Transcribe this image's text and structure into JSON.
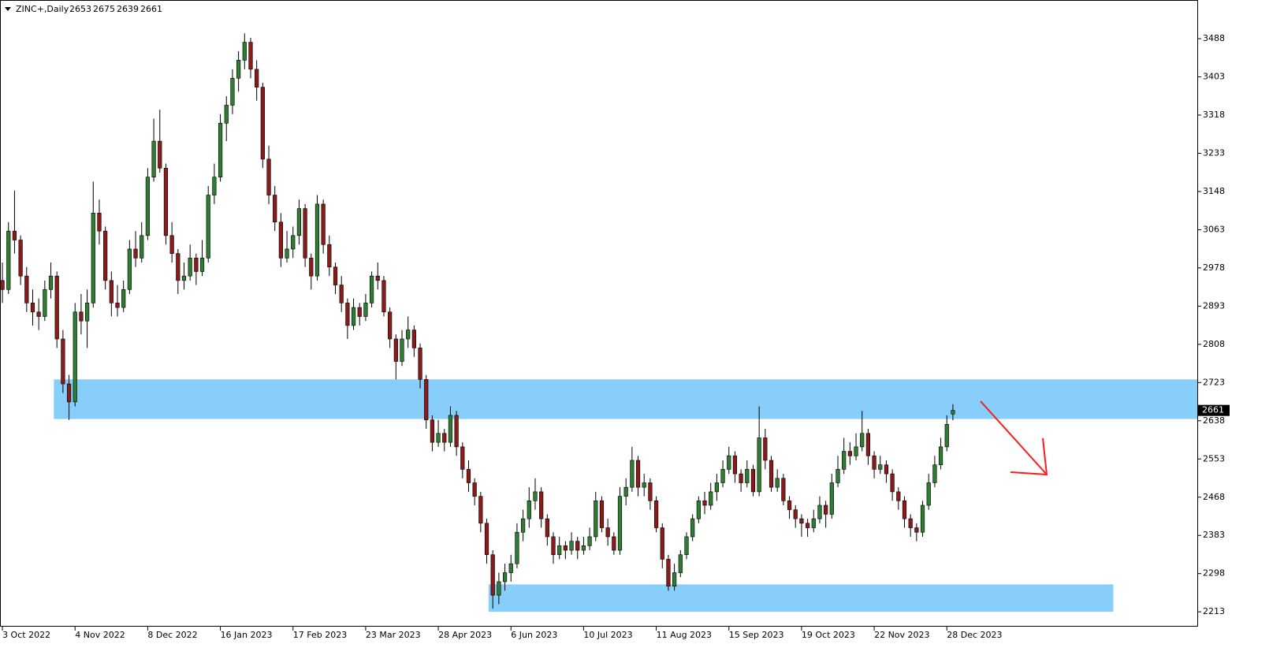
{
  "chart_data": {
    "type": "candlestick",
    "title": "ZINC+,Daily",
    "bull_color": "#2e7d32",
    "bear_color": "#8b1a1a",
    "zone_color": "#87cefa",
    "xlim": [
      -0.4,
      197.5
    ],
    "ylim": [
      2180,
      3574
    ],
    "yticks": [
      3488,
      3403,
      3318,
      3233,
      3148,
      3063,
      2978,
      2893,
      2808,
      2723,
      2638,
      2553,
      2468,
      2383,
      2298,
      2213
    ],
    "xticks": [
      {
        "value": 0,
        "label": "3 Oct 2022"
      },
      {
        "value": 12,
        "label": "4 Nov 2022"
      },
      {
        "value": 24,
        "label": "8 Dec 2022"
      },
      {
        "value": 36,
        "label": "16 Jan 2023"
      },
      {
        "value": 48,
        "label": "17 Feb 2023"
      },
      {
        "value": 60,
        "label": "23 Mar 2023"
      },
      {
        "value": 72,
        "label": "28 Apr 2023"
      },
      {
        "value": 84,
        "label": "6 Jun 2023"
      },
      {
        "value": 96,
        "label": "10 Jul 2023"
      },
      {
        "value": 108,
        "label": "11 Aug 2023"
      },
      {
        "value": 120,
        "label": "15 Sep 2023"
      },
      {
        "value": 132,
        "label": "19 Oct 2023"
      },
      {
        "value": 144,
        "label": "22 Nov 2023"
      },
      {
        "value": 156,
        "label": "28 Dec 2023"
      }
    ],
    "zones": [
      {
        "xlim": [
          8.5,
          197.5
        ],
        "ylim": [
          2642,
          2730
        ]
      },
      {
        "xlim": [
          80.3,
          183.5
        ],
        "ylim": [
          2213,
          2274
        ]
      }
    ],
    "ohlc": [
      [
        2950,
        2990,
        2900,
        2930
      ],
      [
        2930,
        3080,
        2920,
        3060
      ],
      [
        3060,
        3150,
        3010,
        3040
      ],
      [
        3040,
        3050,
        2940,
        2960
      ],
      [
        2960,
        2980,
        2880,
        2900
      ],
      [
        2900,
        2930,
        2850,
        2880
      ],
      [
        2880,
        2910,
        2840,
        2870
      ],
      [
        2870,
        2950,
        2860,
        2930
      ],
      [
        2930,
        2990,
        2910,
        2960
      ],
      [
        2960,
        2970,
        2800,
        2820
      ],
      [
        2820,
        2840,
        2700,
        2720
      ],
      [
        2720,
        2740,
        2640,
        2680
      ],
      [
        2680,
        2900,
        2670,
        2880
      ],
      [
        2880,
        2920,
        2830,
        2860
      ],
      [
        2860,
        2930,
        2800,
        2900
      ],
      [
        2900,
        3170,
        2890,
        3100
      ],
      [
        3100,
        3130,
        3030,
        3060
      ],
      [
        3060,
        3070,
        2930,
        2950
      ],
      [
        2950,
        2970,
        2870,
        2900
      ],
      [
        2900,
        2940,
        2870,
        2890
      ],
      [
        2890,
        2950,
        2880,
        2930
      ],
      [
        2930,
        3040,
        2920,
        3020
      ],
      [
        3020,
        3060,
        2980,
        3000
      ],
      [
        3000,
        3080,
        2990,
        3050
      ],
      [
        3050,
        3200,
        3040,
        3180
      ],
      [
        3180,
        3310,
        3170,
        3260
      ],
      [
        3260,
        3330,
        3190,
        3200
      ],
      [
        3200,
        3210,
        3030,
        3050
      ],
      [
        3050,
        3080,
        2990,
        3010
      ],
      [
        3010,
        3020,
        2920,
        2950
      ],
      [
        2950,
        2990,
        2930,
        2960
      ],
      [
        2960,
        3030,
        2950,
        3000
      ],
      [
        3000,
        3010,
        2940,
        2970
      ],
      [
        2970,
        3040,
        2960,
        3000
      ],
      [
        3000,
        3160,
        2990,
        3140
      ],
      [
        3140,
        3210,
        3120,
        3180
      ],
      [
        3180,
        3320,
        3170,
        3300
      ],
      [
        3300,
        3360,
        3260,
        3340
      ],
      [
        3340,
        3420,
        3320,
        3400
      ],
      [
        3400,
        3460,
        3370,
        3440
      ],
      [
        3440,
        3500,
        3420,
        3480
      ],
      [
        3480,
        3490,
        3400,
        3420
      ],
      [
        3420,
        3440,
        3350,
        3380
      ],
      [
        3380,
        3390,
        3200,
        3220
      ],
      [
        3220,
        3250,
        3120,
        3140
      ],
      [
        3140,
        3160,
        3060,
        3080
      ],
      [
        3080,
        3100,
        2980,
        3000
      ],
      [
        3000,
        3060,
        2990,
        3020
      ],
      [
        3020,
        3070,
        3000,
        3050
      ],
      [
        3050,
        3130,
        3030,
        3110
      ],
      [
        3110,
        3120,
        2980,
        3000
      ],
      [
        3000,
        3010,
        2930,
        2960
      ],
      [
        2960,
        3140,
        2950,
        3120
      ],
      [
        3120,
        3130,
        3010,
        3030
      ],
      [
        3030,
        3050,
        2960,
        2980
      ],
      [
        2980,
        2990,
        2920,
        2940
      ],
      [
        2940,
        2960,
        2880,
        2900
      ],
      [
        2900,
        2910,
        2820,
        2850
      ],
      [
        2850,
        2910,
        2840,
        2890
      ],
      [
        2890,
        2900,
        2850,
        2870
      ],
      [
        2870,
        2920,
        2860,
        2900
      ],
      [
        2900,
        2970,
        2890,
        2960
      ],
      [
        2960,
        2990,
        2930,
        2950
      ],
      [
        2950,
        2960,
        2870,
        2880
      ],
      [
        2880,
        2890,
        2800,
        2820
      ],
      [
        2820,
        2830,
        2730,
        2770
      ],
      [
        2770,
        2840,
        2760,
        2820
      ],
      [
        2820,
        2870,
        2800,
        2840
      ],
      [
        2840,
        2850,
        2780,
        2800
      ],
      [
        2800,
        2810,
        2710,
        2730
      ],
      [
        2730,
        2740,
        2620,
        2640
      ],
      [
        2640,
        2650,
        2570,
        2590
      ],
      [
        2590,
        2640,
        2580,
        2610
      ],
      [
        2610,
        2620,
        2570,
        2590
      ],
      [
        2590,
        2670,
        2580,
        2650
      ],
      [
        2650,
        2660,
        2560,
        2580
      ],
      [
        2580,
        2590,
        2510,
        2530
      ],
      [
        2530,
        2550,
        2480,
        2500
      ],
      [
        2500,
        2510,
        2450,
        2470
      ],
      [
        2470,
        2480,
        2390,
        2410
      ],
      [
        2410,
        2420,
        2320,
        2340
      ],
      [
        2340,
        2350,
        2220,
        2250
      ],
      [
        2250,
        2300,
        2230,
        2280
      ],
      [
        2280,
        2320,
        2260,
        2300
      ],
      [
        2300,
        2340,
        2280,
        2320
      ],
      [
        2320,
        2410,
        2310,
        2390
      ],
      [
        2390,
        2440,
        2370,
        2420
      ],
      [
        2420,
        2490,
        2400,
        2460
      ],
      [
        2460,
        2510,
        2440,
        2480
      ],
      [
        2480,
        2490,
        2400,
        2420
      ],
      [
        2420,
        2430,
        2360,
        2380
      ],
      [
        2380,
        2390,
        2320,
        2340
      ],
      [
        2340,
        2380,
        2330,
        2360
      ],
      [
        2360,
        2370,
        2330,
        2350
      ],
      [
        2350,
        2390,
        2340,
        2370
      ],
      [
        2370,
        2380,
        2330,
        2350
      ],
      [
        2350,
        2380,
        2340,
        2360
      ],
      [
        2360,
        2400,
        2350,
        2380
      ],
      [
        2380,
        2480,
        2370,
        2460
      ],
      [
        2460,
        2470,
        2390,
        2400
      ],
      [
        2400,
        2420,
        2360,
        2380
      ],
      [
        2380,
        2390,
        2340,
        2350
      ],
      [
        2350,
        2490,
        2340,
        2470
      ],
      [
        2470,
        2510,
        2450,
        2490
      ],
      [
        2490,
        2580,
        2480,
        2550
      ],
      [
        2550,
        2560,
        2470,
        2490
      ],
      [
        2490,
        2520,
        2470,
        2500
      ],
      [
        2500,
        2510,
        2440,
        2460
      ],
      [
        2460,
        2470,
        2390,
        2400
      ],
      [
        2400,
        2410,
        2310,
        2330
      ],
      [
        2330,
        2340,
        2260,
        2270
      ],
      [
        2270,
        2320,
        2260,
        2300
      ],
      [
        2300,
        2350,
        2290,
        2340
      ],
      [
        2340,
        2390,
        2330,
        2380
      ],
      [
        2380,
        2430,
        2370,
        2420
      ],
      [
        2420,
        2470,
        2410,
        2460
      ],
      [
        2460,
        2480,
        2430,
        2450
      ],
      [
        2450,
        2500,
        2440,
        2480
      ],
      [
        2480,
        2520,
        2460,
        2500
      ],
      [
        2500,
        2550,
        2490,
        2530
      ],
      [
        2530,
        2580,
        2520,
        2560
      ],
      [
        2560,
        2570,
        2500,
        2520
      ],
      [
        2520,
        2530,
        2480,
        2500
      ],
      [
        2500,
        2550,
        2490,
        2530
      ],
      [
        2530,
        2540,
        2470,
        2480
      ],
      [
        2480,
        2670,
        2470,
        2600
      ],
      [
        2600,
        2620,
        2530,
        2550
      ],
      [
        2550,
        2560,
        2480,
        2490
      ],
      [
        2490,
        2530,
        2480,
        2510
      ],
      [
        2510,
        2520,
        2450,
        2460
      ],
      [
        2460,
        2470,
        2420,
        2440
      ],
      [
        2440,
        2450,
        2400,
        2420
      ],
      [
        2420,
        2430,
        2380,
        2410
      ],
      [
        2410,
        2420,
        2380,
        2400
      ],
      [
        2400,
        2440,
        2390,
        2420
      ],
      [
        2420,
        2470,
        2410,
        2450
      ],
      [
        2450,
        2460,
        2400,
        2430
      ],
      [
        2430,
        2520,
        2420,
        2500
      ],
      [
        2500,
        2560,
        2490,
        2530
      ],
      [
        2530,
        2600,
        2520,
        2570
      ],
      [
        2570,
        2590,
        2540,
        2560
      ],
      [
        2560,
        2610,
        2550,
        2580
      ],
      [
        2580,
        2660,
        2570,
        2610
      ],
      [
        2610,
        2620,
        2540,
        2560
      ],
      [
        2560,
        2570,
        2510,
        2530
      ],
      [
        2530,
        2560,
        2520,
        2540
      ],
      [
        2540,
        2550,
        2500,
        2520
      ],
      [
        2520,
        2530,
        2460,
        2480
      ],
      [
        2480,
        2490,
        2440,
        2460
      ],
      [
        2460,
        2470,
        2400,
        2420
      ],
      [
        2420,
        2430,
        2380,
        2400
      ],
      [
        2400,
        2410,
        2370,
        2390
      ],
      [
        2390,
        2460,
        2380,
        2450
      ],
      [
        2450,
        2520,
        2440,
        2500
      ],
      [
        2500,
        2560,
        2490,
        2540
      ],
      [
        2540,
        2600,
        2530,
        2580
      ],
      [
        2580,
        2650,
        2570,
        2630
      ],
      [
        2653,
        2675,
        2639,
        2661
      ]
    ]
  }
}
